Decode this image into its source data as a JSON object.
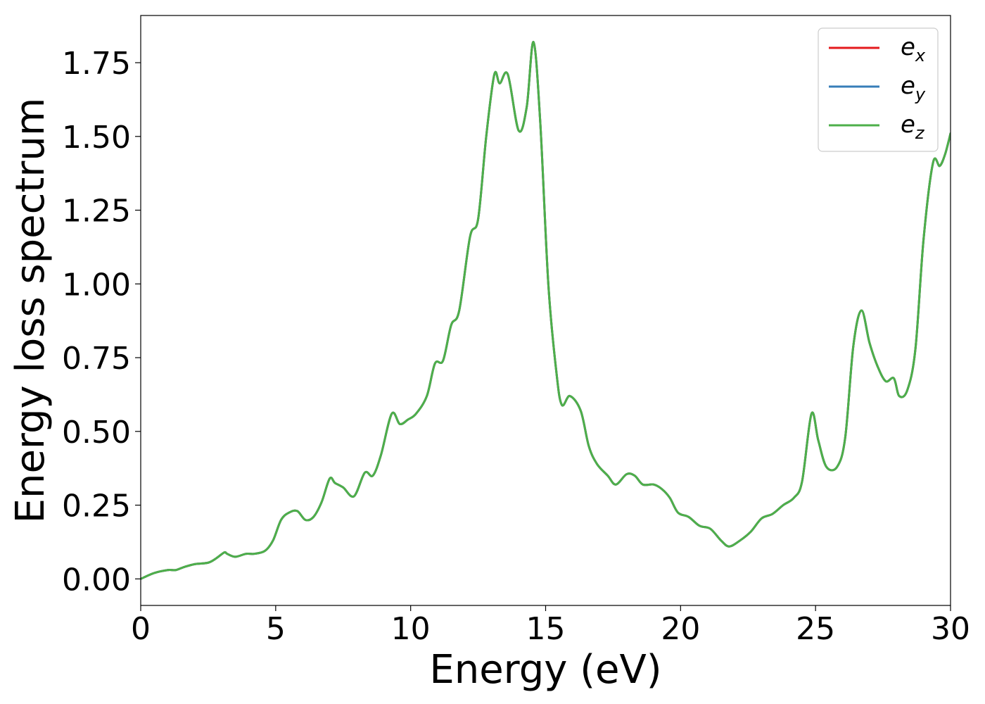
{
  "chart_data": {
    "type": "line",
    "xlabel": "Energy (eV)",
    "ylabel": "Energy loss spectrum",
    "xlim": [
      0,
      30
    ],
    "ylim": [
      -0.09,
      1.91
    ],
    "x_ticks": [
      "0",
      "5",
      "10",
      "15",
      "20",
      "25",
      "30"
    ],
    "x_tick_values": [
      0,
      5,
      10,
      15,
      20,
      25,
      30
    ],
    "y_ticks": [
      "0.00",
      "0.25",
      "0.50",
      "0.75",
      "1.00",
      "1.25",
      "1.50",
      "1.75"
    ],
    "y_tick_values": [
      0,
      0.25,
      0.5,
      0.75,
      1.0,
      1.25,
      1.5,
      1.75
    ],
    "grid": false,
    "legend_position": "top-right",
    "series": [
      {
        "name": "e",
        "subscript": "x",
        "color": "#e41a1c"
      },
      {
        "name": "e",
        "subscript": "y",
        "color": "#377eb8"
      },
      {
        "name": "e",
        "subscript": "z",
        "color": "#4daf4a"
      }
    ],
    "x": [
      0,
      0.5,
      1.0,
      1.3,
      1.6,
      2.0,
      2.5,
      2.8,
      3.1,
      3.2,
      3.5,
      3.9,
      4.2,
      4.6,
      4.9,
      5.2,
      5.5,
      5.8,
      6.1,
      6.4,
      6.7,
      7.0,
      7.2,
      7.5,
      7.9,
      8.3,
      8.6,
      8.9,
      9.3,
      9.6,
      9.9,
      10.2,
      10.6,
      10.9,
      11.2,
      11.5,
      11.8,
      12.2,
      12.5,
      12.8,
      13.1,
      13.3,
      13.6,
      14.0,
      14.3,
      14.55,
      14.8,
      15.1,
      15.4,
      15.6,
      15.9,
      16.3,
      16.6,
      16.9,
      17.3,
      17.6,
      18.0,
      18.3,
      18.6,
      19.0,
      19.3,
      19.6,
      19.9,
      20.3,
      20.7,
      21.1,
      21.5,
      21.8,
      22.2,
      22.6,
      23.0,
      23.4,
      23.8,
      24.2,
      24.5,
      24.85,
      25.1,
      25.4,
      25.8,
      26.1,
      26.4,
      26.7,
      27.0,
      27.3,
      27.6,
      27.9,
      28.1,
      28.4,
      28.7,
      29.0,
      29.35,
      29.6,
      29.8,
      30.0
    ],
    "y": [
      0.0,
      0.02,
      0.03,
      0.03,
      0.04,
      0.05,
      0.055,
      0.07,
      0.09,
      0.085,
      0.075,
      0.085,
      0.085,
      0.095,
      0.13,
      0.2,
      0.225,
      0.23,
      0.2,
      0.21,
      0.26,
      0.34,
      0.325,
      0.31,
      0.28,
      0.36,
      0.35,
      0.42,
      0.56,
      0.525,
      0.54,
      0.56,
      0.62,
      0.73,
      0.74,
      0.86,
      0.91,
      1.16,
      1.22,
      1.5,
      1.71,
      1.68,
      1.71,
      1.52,
      1.6,
      1.82,
      1.55,
      1.0,
      0.7,
      0.59,
      0.62,
      0.57,
      0.45,
      0.39,
      0.35,
      0.32,
      0.355,
      0.35,
      0.32,
      0.32,
      0.305,
      0.275,
      0.225,
      0.21,
      0.18,
      0.17,
      0.13,
      0.11,
      0.13,
      0.16,
      0.205,
      0.22,
      0.25,
      0.275,
      0.33,
      0.56,
      0.47,
      0.38,
      0.38,
      0.48,
      0.79,
      0.91,
      0.8,
      0.72,
      0.67,
      0.68,
      0.62,
      0.64,
      0.78,
      1.15,
      1.41,
      1.4,
      1.44,
      1.51
    ]
  }
}
